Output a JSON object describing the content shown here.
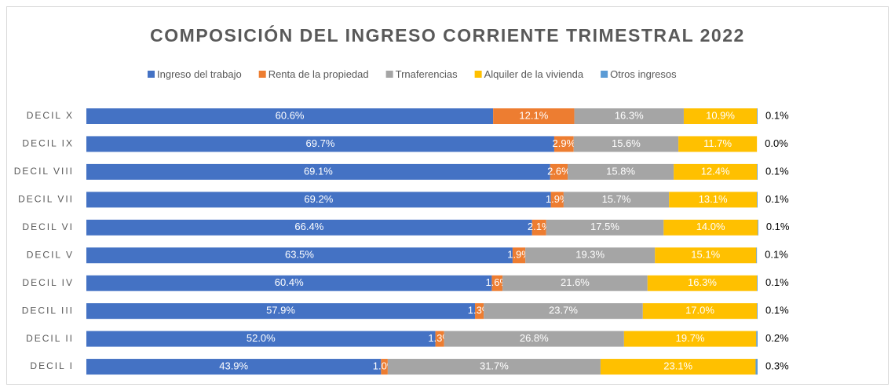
{
  "chart_data": {
    "type": "stacked_bar_horizontal",
    "title": "COMPOSICIÓN DEL INGRESO CORRIENTE TRIMESTRAL 2022",
    "categories": [
      "DECIL X",
      "DECIL IX",
      "DECIL VIII",
      "DECIL VII",
      "DECIL VI",
      "DECIL V",
      "DECIL IV",
      "DECIL III",
      "DECIL II",
      "DECIL I"
    ],
    "xlim": [
      0,
      100
    ],
    "legend": "top",
    "series": [
      {
        "name": "Ingreso del trabajo",
        "color": "#4472c4",
        "values": [
          60.6,
          69.7,
          69.1,
          69.2,
          66.4,
          63.5,
          60.4,
          57.9,
          52.0,
          43.9
        ],
        "value_labels": [
          "60.6%",
          "69.7%",
          "69.1%",
          "69.2%",
          "66.4%",
          "63.5%",
          "60.4%",
          "57.9%",
          "52.0%",
          "43.9%"
        ]
      },
      {
        "name": "Renta de la propiedad",
        "color": "#ed7d31",
        "values": [
          12.1,
          2.9,
          2.6,
          1.9,
          2.1,
          1.9,
          1.6,
          1.3,
          1.3,
          1.0
        ],
        "value_labels": [
          "12.1%",
          "2.9%",
          "2.6%",
          "1.9%",
          "2.1%",
          "1.9%",
          "1.6%",
          "1.3%",
          "1.3%",
          "1.0%"
        ]
      },
      {
        "name": "Trnaferencias",
        "color": "#a5a5a5",
        "values": [
          16.3,
          15.6,
          15.8,
          15.7,
          17.5,
          19.3,
          21.6,
          23.7,
          26.8,
          31.7
        ],
        "value_labels": [
          "16.3%",
          "15.6%",
          "15.8%",
          "15.7%",
          "17.5%",
          "19.3%",
          "21.6%",
          "23.7%",
          "26.8%",
          "31.7%"
        ]
      },
      {
        "name": "Alquiler de la vivienda",
        "color": "#ffc000",
        "values": [
          10.9,
          11.7,
          12.4,
          13.1,
          14.0,
          15.1,
          16.3,
          17.0,
          19.7,
          23.1
        ],
        "value_labels": [
          "10.9%",
          "11.7%",
          "12.4%",
          "13.1%",
          "14.0%",
          "15.1%",
          "16.3%",
          "17.0%",
          "19.7%",
          "23.1%"
        ]
      },
      {
        "name": "Otros ingresos",
        "color": "#5b9bd5",
        "values": [
          0.1,
          0.0,
          0.1,
          0.1,
          0.1,
          0.1,
          0.1,
          0.1,
          0.2,
          0.3
        ],
        "value_labels": [
          "0.1%",
          "0.0%",
          "0.1%",
          "0.1%",
          "0.1%",
          "0.1%",
          "0.1%",
          "0.1%",
          "0.2%",
          "0.3%"
        ]
      }
    ]
  }
}
